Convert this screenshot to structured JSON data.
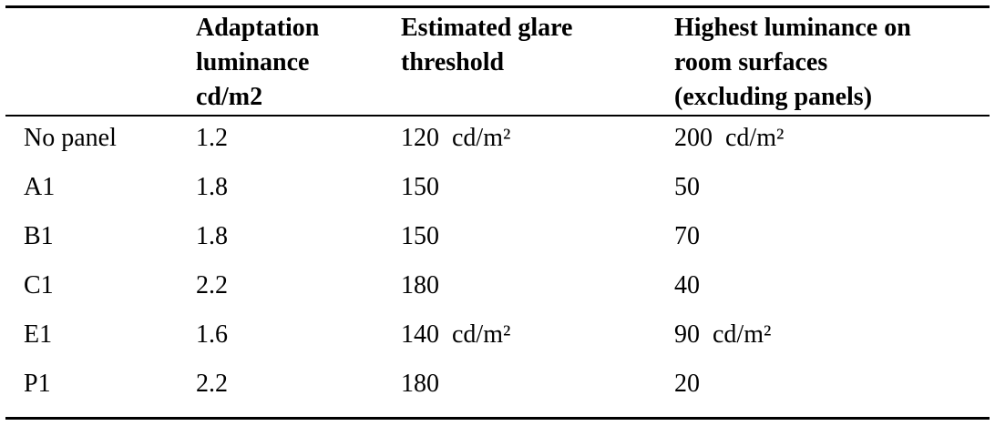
{
  "table": {
    "header": [
      [],
      [
        "Adaptation",
        "luminance",
        "cd/m2"
      ],
      [
        "Estimated glare",
        "threshold"
      ],
      [
        "Highest luminance on",
        "room surfaces",
        "(excluding panels)"
      ]
    ],
    "rows": [
      [
        "No panel",
        "1.2",
        "120  cd/m²",
        "200  cd/m²"
      ],
      [
        "A1",
        "1.8",
        "150",
        "50"
      ],
      [
        "B1",
        "1.8",
        "150",
        "70"
      ],
      [
        "C1",
        "2.2",
        "180",
        "40"
      ],
      [
        "E1",
        "1.6",
        "140  cd/m²",
        "90  cd/m²"
      ],
      [
        "P1",
        "2.2",
        "180",
        "20"
      ]
    ]
  }
}
